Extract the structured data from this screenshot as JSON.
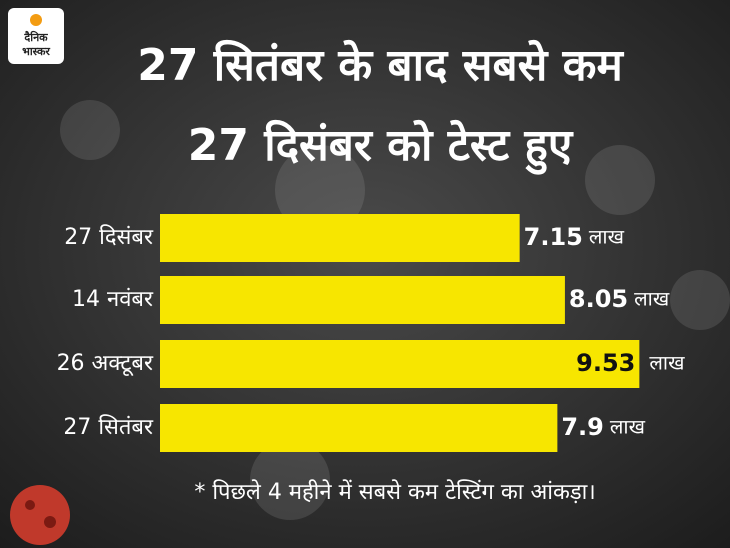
{
  "logo": [
    "दैनिक",
    "भास्कर"
  ],
  "chart_data": {
    "type": "bar",
    "orientation": "horizontal",
    "title_lines": [
      "27 सितंबर के बाद सबसे कम",
      "27 दिसंबर को टेस्ट हुए"
    ],
    "categories": [
      "27 दिसंबर",
      "14 नवंबर",
      "26 अक्टूबर",
      "27 सितंबर"
    ],
    "values": [
      7.15,
      8.05,
      9.53,
      7.9
    ],
    "unit": "लाख",
    "color": "#f7e600",
    "highlight_index": 2,
    "footnote": "* पिछले 4 महीने में सबसे कम टेस्टिंग का आंकड़ा।"
  }
}
